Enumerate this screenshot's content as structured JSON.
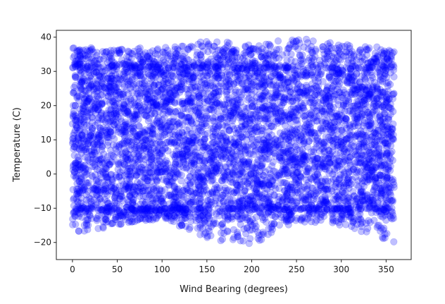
{
  "chart_data": {
    "type": "scatter",
    "title": "",
    "xlabel": "Wind Bearing (degrees)",
    "ylabel": "Temperature (C)",
    "xlim": [
      -18,
      378
    ],
    "ylim": [
      -25,
      42
    ],
    "x_ticks": [
      0,
      50,
      100,
      150,
      200,
      250,
      300,
      350
    ],
    "y_ticks": [
      -20,
      -10,
      0,
      10,
      20,
      30,
      40
    ],
    "x_tick_labels": [
      "0",
      "50",
      "100",
      "150",
      "200",
      "250",
      "300",
      "350"
    ],
    "y_tick_labels": [
      "−20",
      "−10",
      "0",
      "10",
      "20",
      "30",
      "40"
    ],
    "grid": false,
    "legend": "none",
    "marker_color": "#0000ff",
    "marker_alpha": 0.25,
    "series": [
      {
        "x_range": [
          0,
          359
        ],
        "y_range_by_bearing": [
          {
            "x": 0,
            "y_min": -18,
            "y_max": 37
          },
          {
            "x": 50,
            "y_min": -15,
            "y_max": 37
          },
          {
            "x": 100,
            "y_min": -13,
            "y_max": 37
          },
          {
            "x": 150,
            "y_min": -19,
            "y_max": 39
          },
          {
            "x": 200,
            "y_min": -21,
            "y_max": 38
          },
          {
            "x": 250,
            "y_min": -14,
            "y_max": 40
          },
          {
            "x": 300,
            "y_min": -15,
            "y_max": 38
          },
          {
            "x": 350,
            "y_min": -20,
            "y_max": 37
          }
        ],
        "dense_band": [
          -10,
          31
        ]
      }
    ]
  }
}
